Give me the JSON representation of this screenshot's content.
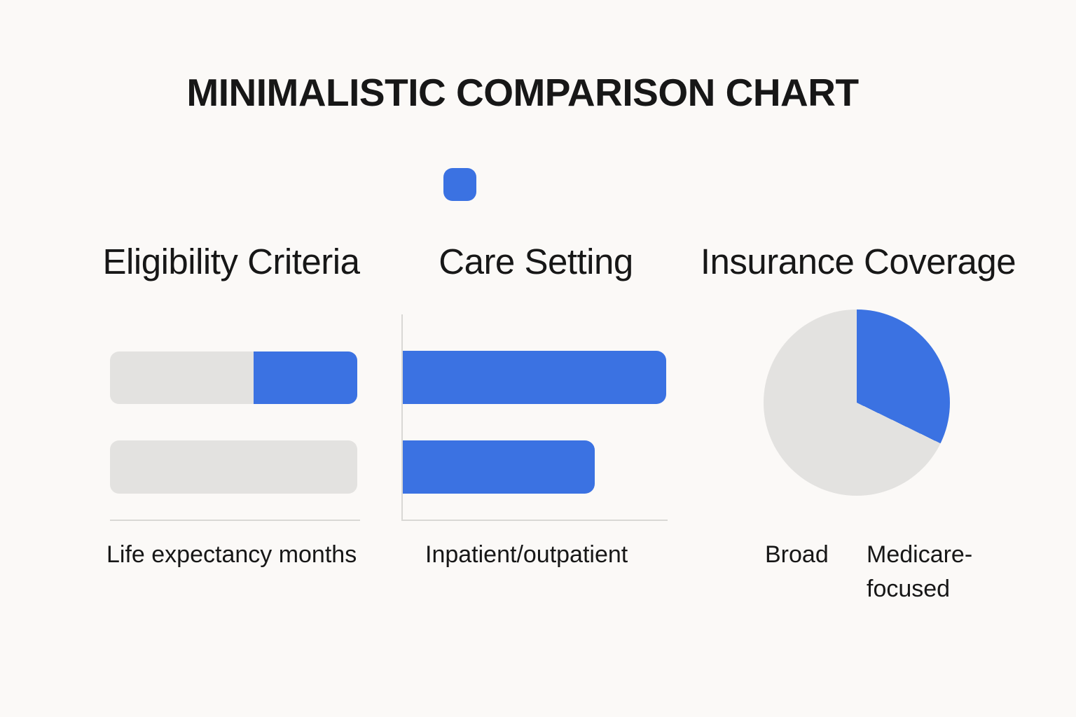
{
  "title": "MINIMALISTIC COMPARISON CHART",
  "legend": {
    "marker_shape": "rounded-square",
    "marker_color": "#3b72e2"
  },
  "colors": {
    "accent": "#3b72e2",
    "neutral": "#e3e2e0",
    "background": "#fbf9f7",
    "axis": "#d9d8d5",
    "text": "#171717"
  },
  "chart_data": [
    {
      "type": "bar",
      "variant": "progress-track",
      "title": "Eligibility Criteria",
      "xlabel": "Life expectancy months",
      "orientation": "horizontal",
      "grid": false,
      "y_axis": false,
      "baseline": true,
      "bars": [
        {
          "track_pct": 100,
          "highlight_pct": 42,
          "highlight_align": "right",
          "highlight_color": "accent"
        },
        {
          "track_pct": 100,
          "highlight_pct": 0,
          "highlight_align": "right",
          "highlight_color": "accent"
        }
      ]
    },
    {
      "type": "bar",
      "variant": "plain",
      "title": "Care Setting",
      "xlabel": "Inpatient/outpatient",
      "orientation": "horizontal",
      "grid": false,
      "y_axis": true,
      "baseline": true,
      "bars": [
        {
          "value_pct": 99,
          "color": "accent"
        },
        {
          "value_pct": 72,
          "color": "accent"
        }
      ]
    },
    {
      "type": "pie",
      "title": "Insurance Coverage",
      "legend_position": "bottom",
      "slices": [
        {
          "label": "Medicare-focused",
          "pct": 32,
          "start_deg": 0,
          "end_deg": 116,
          "color_role": "accent"
        },
        {
          "label": "Broad",
          "pct": 68,
          "start_deg": 116,
          "end_deg": 360,
          "color_role": "neutral"
        }
      ],
      "caption_left": "Broad",
      "caption_right": "Medicare-\nfocused"
    }
  ]
}
